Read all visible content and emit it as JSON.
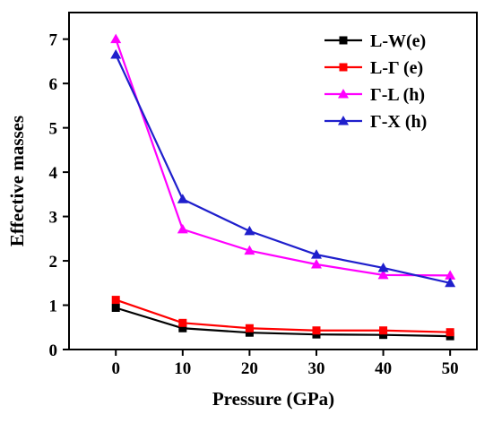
{
  "chart_data": {
    "type": "line",
    "title": "",
    "xlabel": "Pressure (GPa)",
    "ylabel": "Effective masses",
    "x": [
      0,
      10,
      20,
      30,
      40,
      50
    ],
    "xticks": [
      "0",
      "10",
      "20",
      "30",
      "40",
      "50"
    ],
    "yticks": [
      "0",
      "1",
      "2",
      "3",
      "4",
      "5",
      "6",
      "7"
    ],
    "xlim": [
      -7,
      54
    ],
    "ylim": [
      0,
      7.6
    ],
    "grid": false,
    "legend_position": "top-right",
    "series": [
      {
        "name": "L-W(e)",
        "color": "#000000",
        "marker": "square",
        "values": [
          0.94,
          0.48,
          0.38,
          0.34,
          0.33,
          0.3
        ]
      },
      {
        "name": "L-Γ (e)",
        "color": "#ff0000",
        "marker": "square",
        "values": [
          1.12,
          0.6,
          0.48,
          0.43,
          0.43,
          0.39
        ]
      },
      {
        "name": "Γ-L (h)",
        "color": "#ff00ff",
        "marker": "triangle",
        "values": [
          7.0,
          2.71,
          2.23,
          1.92,
          1.68,
          1.67
        ]
      },
      {
        "name": "Γ-X (h)",
        "color": "#1f1fcc",
        "marker": "triangle",
        "values": [
          6.65,
          3.39,
          2.67,
          2.14,
          1.84,
          1.5
        ]
      }
    ]
  }
}
